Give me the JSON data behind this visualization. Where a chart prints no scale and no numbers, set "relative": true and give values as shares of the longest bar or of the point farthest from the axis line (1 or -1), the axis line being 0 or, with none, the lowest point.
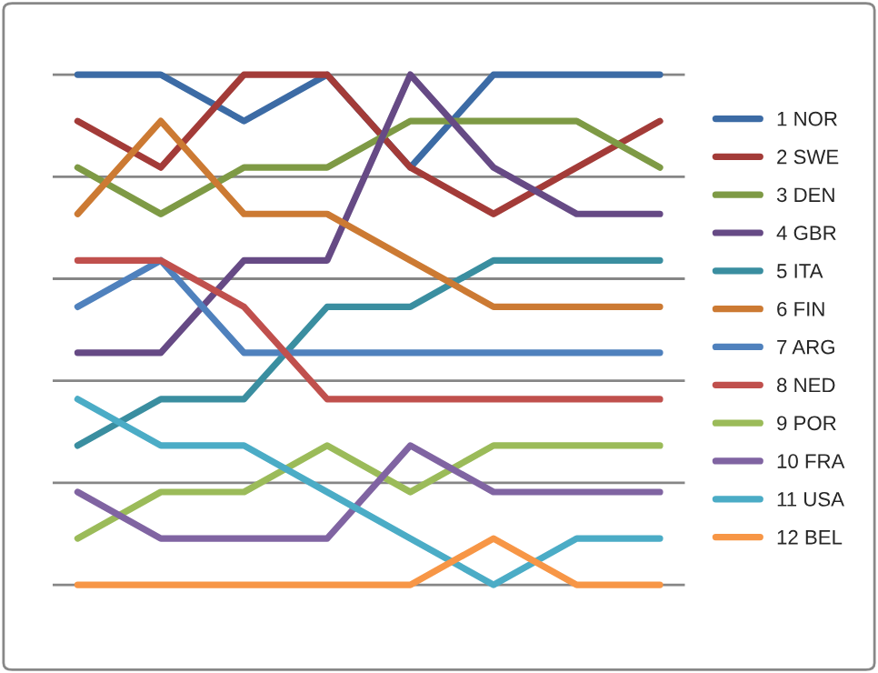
{
  "chart_data": {
    "type": "line",
    "relative": true,
    "grid": "y",
    "legend": "right",
    "marker": "none",
    "line_style": "solid",
    "categories": [
      null,
      null,
      null,
      null,
      null,
      null,
      null,
      null
    ],
    "series": [
      {
        "name": "1 NOR",
        "color": "#3c6ba5",
        "values": [
          1,
          1,
          0.909,
          1,
          0.818,
          1,
          1,
          1
        ]
      },
      {
        "name": "2 SWE",
        "color": "#a33b38",
        "values": [
          0.909,
          0.818,
          1,
          1,
          0.818,
          0.727,
          0.818,
          0.909
        ]
      },
      {
        "name": "3 DEN",
        "color": "#7e9a45",
        "values": [
          0.818,
          0.727,
          0.818,
          0.818,
          0.909,
          0.909,
          0.909,
          0.818
        ]
      },
      {
        "name": "4 GBR",
        "color": "#664a85",
        "values": [
          0.455,
          0.455,
          0.636,
          0.636,
          1,
          0.818,
          0.727,
          0.727
        ]
      },
      {
        "name": "5 ITA",
        "color": "#3a8ea0",
        "values": [
          0.273,
          0.364,
          0.364,
          0.545,
          0.545,
          0.636,
          0.636,
          0.636
        ]
      },
      {
        "name": "6 FIN",
        "color": "#cc7a33",
        "values": [
          0.727,
          0.909,
          0.727,
          0.727,
          0.636,
          0.545,
          0.545,
          0.545
        ]
      },
      {
        "name": "7 ARG",
        "color": "#4f81bd",
        "values": [
          0.545,
          0.636,
          0.455,
          0.455,
          0.455,
          0.455,
          0.455,
          0.455
        ]
      },
      {
        "name": "8 NED",
        "color": "#c0504d",
        "values": [
          0.636,
          0.636,
          0.545,
          0.364,
          0.364,
          0.364,
          0.364,
          0.364
        ]
      },
      {
        "name": "9 POR",
        "color": "#9bbb59",
        "values": [
          0.091,
          0.182,
          0.182,
          0.273,
          0.182,
          0.273,
          0.273,
          0.273
        ]
      },
      {
        "name": "10 FRA",
        "color": "#8064a2",
        "values": [
          0.182,
          0.091,
          0.091,
          0.091,
          0.273,
          0.182,
          0.182,
          0.182
        ]
      },
      {
        "name": "11 USA",
        "color": "#4bacc6",
        "values": [
          0.364,
          0.273,
          0.273,
          0.182,
          0.091,
          0,
          0.091,
          0.091
        ]
      },
      {
        "name": "12 BEL",
        "color": "#f79646",
        "values": [
          0,
          0,
          0,
          0,
          0,
          0.091,
          0,
          0
        ]
      }
    ]
  }
}
